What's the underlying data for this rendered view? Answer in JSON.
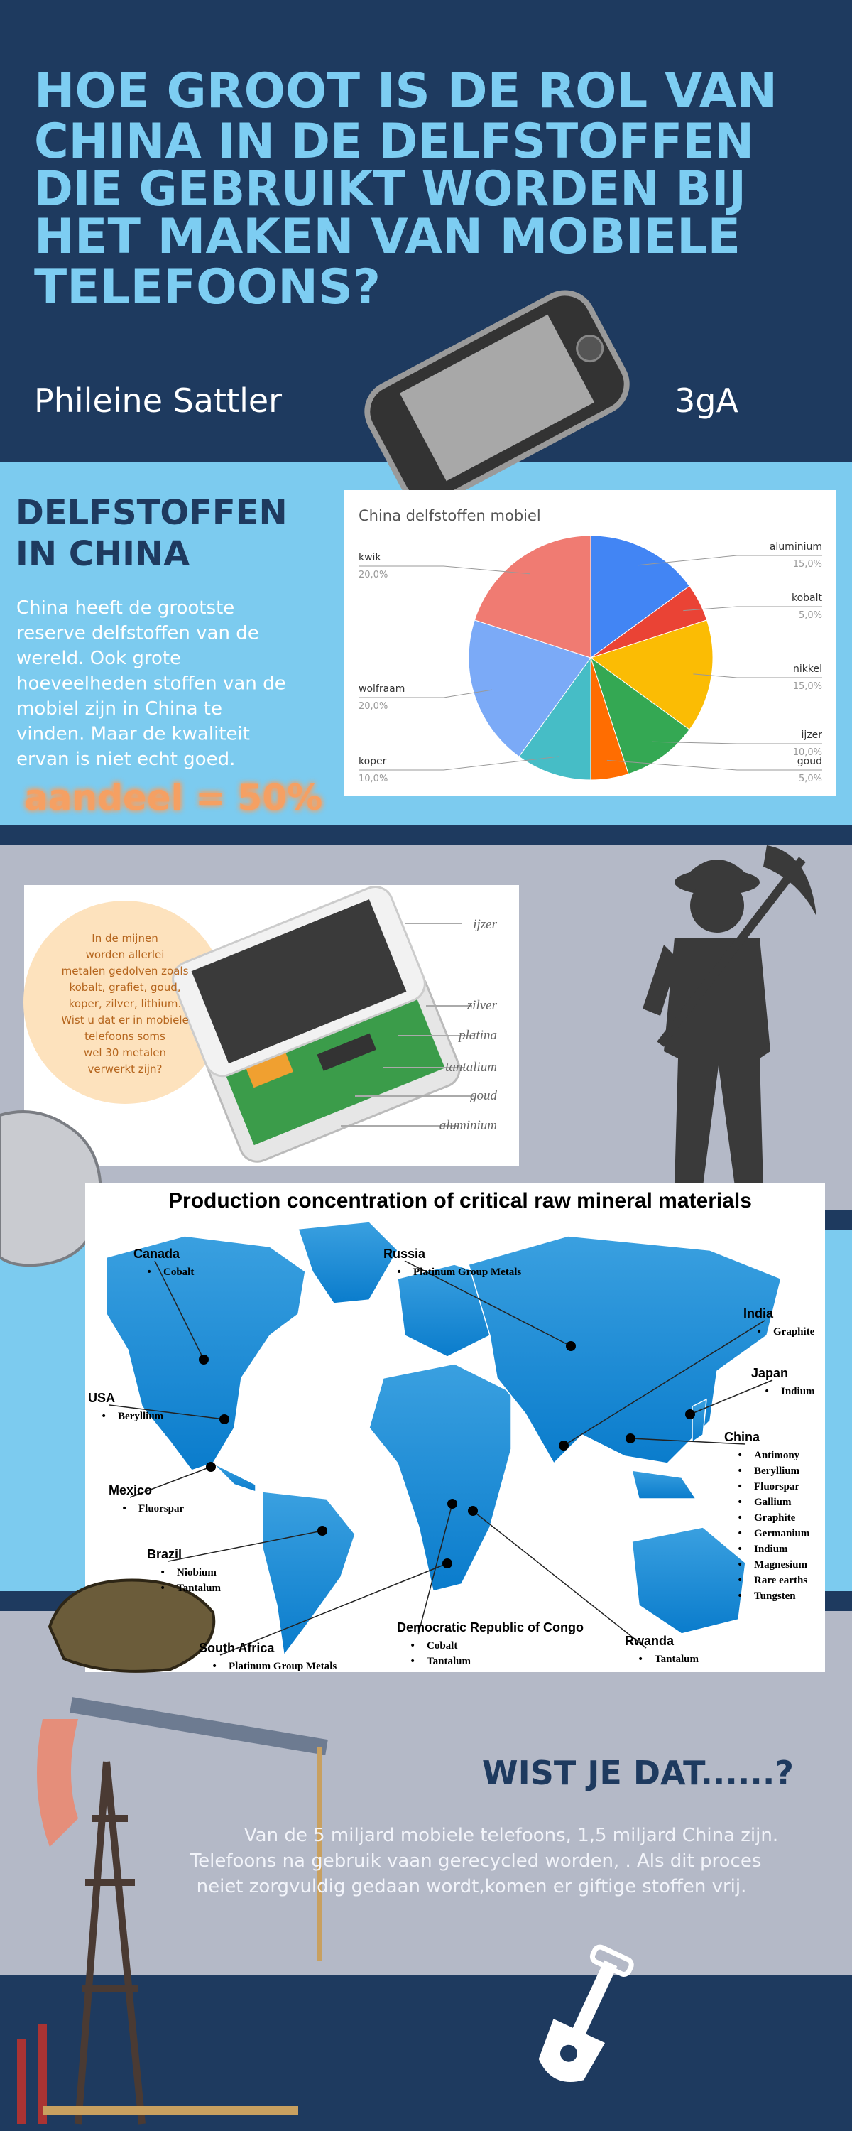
{
  "header": {
    "title_lines": [
      "HOE GROOT IS DE ROL VAN",
      "CHINA IN DE DELFSTOFFEN",
      "DIE GEBRUIKT WORDEN BIJ",
      "HET MAKEN VAN MOBIELE",
      "TELEFOONS?"
    ],
    "author": "Phileine Sattler",
    "class": "3gA"
  },
  "china": {
    "heading_lines": [
      "DELFSTOFFEN",
      "IN CHINA"
    ],
    "text_lines": [
      "China heeft de grootste",
      "reserve delfstoffen van de",
      "wereld. Ook grote",
      "hoeveelheden stoffen van de",
      "mobiel zijn in China te",
      "vinden. Maar de kwaliteit",
      "ervan is niet echt goed."
    ],
    "share": "aandeel = 50%"
  },
  "chart_data": {
    "type": "pie",
    "title": "China delfstoffen mobiel",
    "categories": [
      "aluminium",
      "kobalt",
      "nikkel",
      "ijzer",
      "goud",
      "koper",
      "wolfraam",
      "kwik"
    ],
    "values": [
      15,
      5,
      15,
      10,
      5,
      10,
      20,
      20
    ],
    "value_labels": [
      "15,0%",
      "5,0%",
      "15,0%",
      "10,0%",
      "5,0%",
      "10,0%",
      "20,0%",
      "20,0%"
    ],
    "colors": [
      "#4285f4",
      "#ea4335",
      "#fbbc04",
      "#34a853",
      "#ff6d01",
      "#46bdc6",
      "#7baaf7",
      "#f07b72"
    ]
  },
  "phones": {
    "bubble_lines": [
      "In de mijnen",
      "worden allerlei",
      "metalen gedolven zoals",
      "kobalt, grafiet, goud,",
      "koper, zilver, lithium.",
      "Wist u dat er in mobiele",
      "telefoons soms",
      "wel 30 metalen",
      "verwerkt zijn?"
    ],
    "labels": [
      "ijzer",
      "zilver",
      "platina",
      "tantalium",
      "goud",
      "aluminium"
    ]
  },
  "map": {
    "title": "Production concentration of critical raw mineral materials",
    "countries": [
      {
        "name": "Canada",
        "minerals": [
          "Cobalt"
        ]
      },
      {
        "name": "Russia",
        "minerals": [
          "Platinum Group Metals"
        ]
      },
      {
        "name": "India",
        "minerals": [
          "Graphite"
        ]
      },
      {
        "name": "Japan",
        "minerals": [
          "Indium"
        ]
      },
      {
        "name": "China",
        "minerals": [
          "Antimony",
          "Beryllium",
          "Fluorspar",
          "Gallium",
          "Graphite",
          "Germanium",
          "Indium",
          "Magnesium",
          "Rare earths",
          "Tungsten"
        ]
      },
      {
        "name": "USA",
        "minerals": [
          "Beryllium"
        ]
      },
      {
        "name": "Mexico",
        "minerals": [
          "Fluorspar"
        ]
      },
      {
        "name": "Brazil",
        "minerals": [
          "Niobium",
          "Tantalum"
        ]
      },
      {
        "name": "South Africa",
        "minerals": [
          "Platinum Group Metals"
        ]
      },
      {
        "name": "Democratic Republic of Congo",
        "minerals": [
          "Cobalt",
          "Tantalum"
        ]
      },
      {
        "name": "Rwanda",
        "minerals": [
          "Tantalum"
        ]
      }
    ]
  },
  "facts": {
    "heading": "WIST JE DAT......?",
    "text_lines": [
      "Van de 5 miljard mobiele telefoons, 1,5 miljard China zijn.",
      "Telefoons na gebruik vaan gerecycled worden, . Als dit proces",
      "neiet zorgvuldig gedaan wordt,komen er giftige stoffen vrij."
    ]
  }
}
